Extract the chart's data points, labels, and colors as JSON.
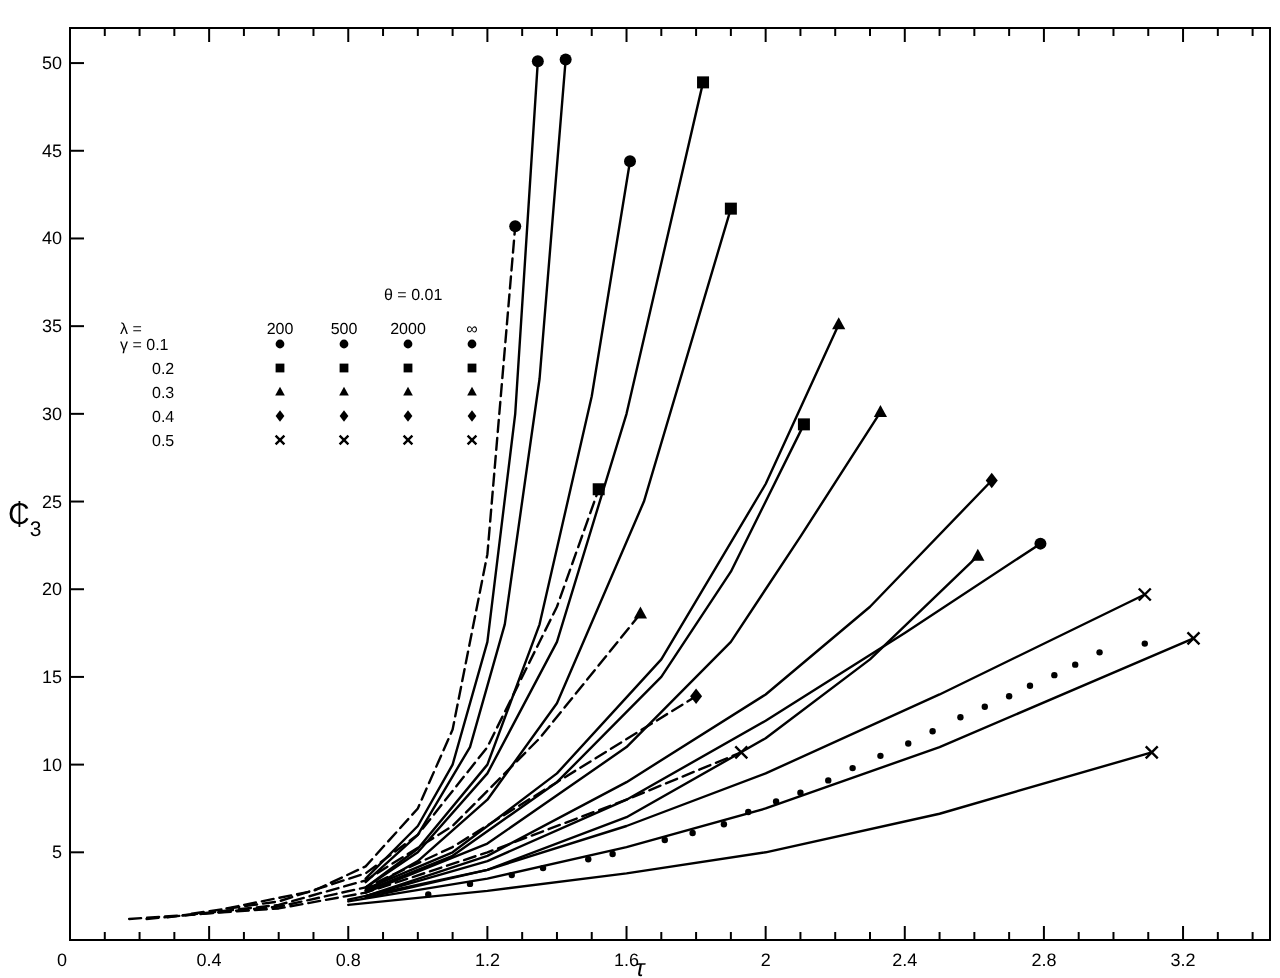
{
  "chart_data": {
    "type": "line",
    "xlabel": "τ",
    "ylabel": "₵$_{3}$",
    "xlim": [
      0,
      3.45
    ],
    "ylim": [
      0,
      52
    ],
    "xticks": [
      0,
      {
        "value": 0.1,
        "label": null
      },
      {
        "value": 0.2,
        "label": null
      },
      {
        "value": 0.3,
        "label": null
      },
      0.4,
      {
        "value": 0.5,
        "label": null
      },
      {
        "value": 0.6,
        "label": null
      },
      {
        "value": 0.7,
        "label": null
      },
      0.8,
      {
        "value": 0.9,
        "label": null
      },
      {
        "value": 1.0,
        "label": null
      },
      {
        "value": 1.1,
        "label": null
      },
      1.2,
      {
        "value": 1.3,
        "label": null
      },
      {
        "value": 1.4,
        "label": null
      },
      {
        "value": 1.5,
        "label": null
      },
      1.6,
      {
        "value": 1.7,
        "label": null
      },
      {
        "value": 1.8,
        "label": null
      },
      {
        "value": 1.9,
        "label": null
      },
      2.0,
      {
        "value": 2.1,
        "label": null
      },
      {
        "value": 2.2,
        "label": null
      },
      {
        "value": 2.3,
        "label": null
      },
      2.4,
      {
        "value": 2.5,
        "label": null
      },
      {
        "value": 2.6,
        "label": null
      },
      {
        "value": 2.7,
        "label": null
      },
      2.8,
      {
        "value": 2.9,
        "label": null
      },
      {
        "value": 3.0,
        "label": null
      },
      {
        "value": 3.1,
        "label": null
      },
      3.2,
      {
        "value": 3.3,
        "label": null
      },
      {
        "value": 3.4,
        "label": null
      }
    ],
    "yticks": [
      5,
      10,
      15,
      20,
      25,
      30,
      35,
      40,
      45,
      50
    ],
    "grid": false,
    "annotations": [
      "θ = 0.01",
      "λ =",
      "200",
      "500",
      "2000",
      "∞",
      "γ = 0.1",
      "0.2",
      "0.3",
      "0.4",
      "0.5"
    ],
    "series": [
      {
        "color": "#000000",
        "line_style": "solid",
        "x": [
          0.85,
          1.0,
          1.2,
          1.35,
          1.5,
          1.61
        ],
        "values": [
          3.0,
          5.2,
          10,
          18,
          31,
          44.4
        ]
      },
      {
        "color": "#000000",
        "line_style": "solid",
        "x": [
          0.85,
          1.0,
          1.15,
          1.25,
          1.35,
          1.425
        ],
        "values": [
          3.3,
          6,
          11,
          18,
          32,
          50.2
        ]
      },
      {
        "color": "#000000",
        "line_style": "solid",
        "x": [
          0.85,
          1.0,
          1.1,
          1.2,
          1.28,
          1.345
        ],
        "values": [
          3.5,
          6.5,
          10,
          17,
          30,
          50.1
        ]
      },
      {
        "color": "#000000",
        "line_style": "dashed",
        "x": [
          0.45,
          0.7,
          0.85,
          1.0,
          1.1,
          1.2,
          1.28
        ],
        "values": [
          1.8,
          2.8,
          4.2,
          7.5,
          12,
          22,
          40.7
        ]
      },
      {
        "color": "#000000",
        "line_style": "solid",
        "x": [
          0.85,
          1.0,
          1.2,
          1.4,
          1.65,
          1.9
        ],
        "values": [
          2.8,
          4.5,
          8,
          13.5,
          25,
          41.7
        ]
      },
      {
        "color": "#000000",
        "line_style": "solid",
        "x": [
          0.85,
          1.1,
          1.4,
          1.7,
          1.9,
          2.11
        ],
        "values": [
          2.8,
          4.8,
          9,
          15,
          21,
          29.4
        ]
      },
      {
        "color": "#000000",
        "line_style": "solid",
        "x": [
          0.85,
          1.0,
          1.2,
          1.4,
          1.6,
          1.82
        ],
        "values": [
          3.0,
          5,
          9.5,
          17,
          30,
          48.9
        ]
      },
      {
        "color": "#000000",
        "line_style": "dashed",
        "x": [
          0.35,
          0.6,
          0.85,
          1.0,
          1.2,
          1.4,
          1.52
        ],
        "values": [
          1.5,
          2.2,
          3.8,
          6,
          11,
          19,
          25.7
        ]
      },
      {
        "color": "#000000",
        "line_style": "solid",
        "x": [
          0.85,
          1.2,
          1.6,
          2.0,
          2.3,
          2.61
        ],
        "values": [
          2.4,
          4,
          7,
          11.5,
          16,
          21.9
        ]
      },
      {
        "color": "#000000",
        "line_style": "solid",
        "x": [
          0.85,
          1.2,
          1.6,
          1.9,
          2.1,
          2.33
        ],
        "values": [
          2.7,
          5.5,
          11,
          17,
          23,
          30.1
        ]
      },
      {
        "color": "#000000",
        "line_style": "solid",
        "x": [
          0.85,
          1.1,
          1.4,
          1.7,
          2.0,
          2.21
        ],
        "values": [
          2.9,
          5,
          9.5,
          16,
          26,
          35.1
        ]
      },
      {
        "color": "#000000",
        "line_style": "dashed",
        "x": [
          0.28,
          0.6,
          0.85,
          1.1,
          1.35,
          1.64
        ],
        "values": [
          1.3,
          2.0,
          3.4,
          6.5,
          11.5,
          18.6
        ]
      },
      {
        "type": "scatter",
        "color": "#000000",
        "marker": "circle",
        "x": [
          1.03,
          1.15,
          1.27,
          1.36,
          1.49,
          1.56,
          1.71,
          1.79,
          1.88,
          1.95,
          2.03,
          2.1,
          2.18,
          2.25,
          2.33,
          2.41,
          2.48,
          2.56,
          2.63,
          2.7,
          2.76,
          2.83,
          2.89,
          2.96,
          3.09
        ],
        "values": [
          2.6,
          3.2,
          3.7,
          4.1,
          4.6,
          4.9,
          5.7,
          6.1,
          6.6,
          7.3,
          7.9,
          8.4,
          9.1,
          9.8,
          10.5,
          11.2,
          11.9,
          12.7,
          13.3,
          13.9,
          14.5,
          15.1,
          15.7,
          16.4,
          16.9
        ]
      },
      {
        "color": "#000000",
        "line_style": "solid",
        "x": [
          0.85,
          1.2,
          1.6,
          2.0,
          2.4,
          2.79
        ],
        "values": [
          2.5,
          4.5,
          8,
          12.5,
          17.5,
          22.6
        ]
      },
      {
        "color": "#000000",
        "line_style": "solid",
        "x": [
          0.85,
          1.2,
          1.6,
          2.0,
          2.3,
          2.65
        ],
        "values": [
          2.5,
          4.8,
          9,
          14,
          19,
          26.2
        ]
      },
      {
        "color": "#000000",
        "line_style": "dashed",
        "x": [
          0.22,
          0.6,
          0.85,
          1.1,
          1.4,
          1.8
        ],
        "values": [
          1.2,
          1.9,
          3.0,
          5.3,
          9,
          13.9
        ]
      },
      {
        "color": "#000000",
        "line_style": "solid",
        "x": [
          0.8,
          1.2,
          1.6,
          2.0,
          2.5,
          3.11
        ],
        "values": [
          2.0,
          2.8,
          3.8,
          5,
          7.2,
          10.7
        ]
      },
      {
        "color": "#000000",
        "line_style": "solid",
        "x": [
          0.8,
          1.2,
          1.6,
          2.0,
          2.5,
          3.23
        ],
        "values": [
          2.2,
          3.5,
          5.3,
          7.5,
          11,
          17.2
        ]
      },
      {
        "color": "#000000",
        "line_style": "solid",
        "x": [
          0.8,
          1.2,
          1.6,
          2.0,
          2.5,
          3.09
        ],
        "values": [
          2.3,
          4,
          6.5,
          9.5,
          14,
          19.7
        ]
      },
      {
        "color": "#000000",
        "line_style": "dashed",
        "x": [
          0.17,
          0.6,
          0.85,
          1.2,
          1.6,
          1.93
        ],
        "values": [
          1.2,
          1.8,
          2.7,
          5,
          8,
          10.7
        ]
      },
      {
        "type": "scatter",
        "color": "#000000",
        "marker": "circle",
        "x": [
          1.61,
          1.425,
          1.345,
          1.28,
          2.79
        ],
        "values": [
          44.4,
          50.2,
          50.1,
          40.7,
          22.6
        ]
      },
      {
        "type": "scatter",
        "color": "#000000",
        "marker": "square",
        "x": [
          1.9,
          2.11,
          1.82,
          1.52
        ],
        "values": [
          41.7,
          29.4,
          48.9,
          25.7
        ]
      },
      {
        "type": "scatter",
        "color": "#000000",
        "marker": "triangle",
        "x": [
          2.61,
          2.33,
          2.21,
          1.64
        ],
        "values": [
          21.9,
          30.1,
          35.1,
          18.6
        ]
      },
      {
        "type": "scatter",
        "color": "#000000",
        "marker": "diamond",
        "x": [
          2.65,
          1.8
        ],
        "values": [
          26.2,
          13.9
        ]
      },
      {
        "type": "scatter",
        "color": "#000000",
        "marker": "cross",
        "x": [
          3.11,
          3.23,
          3.09,
          1.93
        ],
        "values": [
          10.7,
          17.2,
          19.7,
          10.7
        ]
      }
    ]
  }
}
